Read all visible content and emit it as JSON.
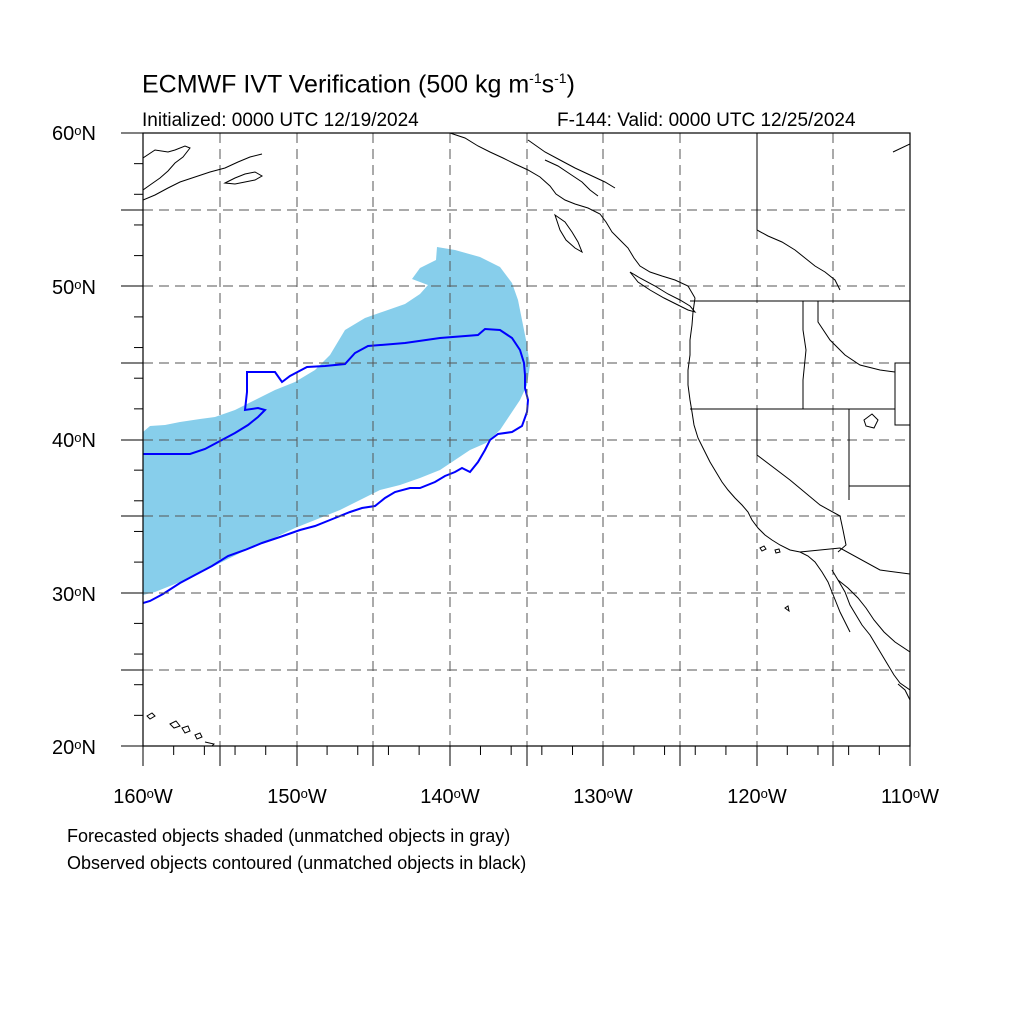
{
  "header": {
    "title_main": "ECMWF IVT Verification (500 kg m",
    "title_sup1": "-1",
    "title_s": "s",
    "title_sup2": "-1",
    "title_end": ")",
    "initialized": "Initialized: 0000 UTC 12/19/2024",
    "valid": "F-144: Valid: 0000 UTC 12/25/2024"
  },
  "map": {
    "projection": "cylindrical equidistant",
    "lon_range": [
      -160,
      -110
    ],
    "lat_range": [
      20,
      60
    ],
    "grid": true,
    "lat_labels": [
      "60",
      "50",
      "40",
      "30",
      "20"
    ],
    "lat_suffix": "N",
    "lon_labels": [
      "160",
      "150",
      "140",
      "130",
      "120",
      "110"
    ],
    "lon_suffix": "W",
    "deg_symbol": "o"
  },
  "colors": {
    "forecast_fill": "#87ceeb",
    "observed_contour": "#0000ff",
    "coastline": "#000000",
    "grid": "#555555"
  },
  "legend": {
    "line1": "Forecasted objects shaded (unmatched objects in gray)",
    "line2": "Observed objects contoured (unmatched objects in black)"
  }
}
